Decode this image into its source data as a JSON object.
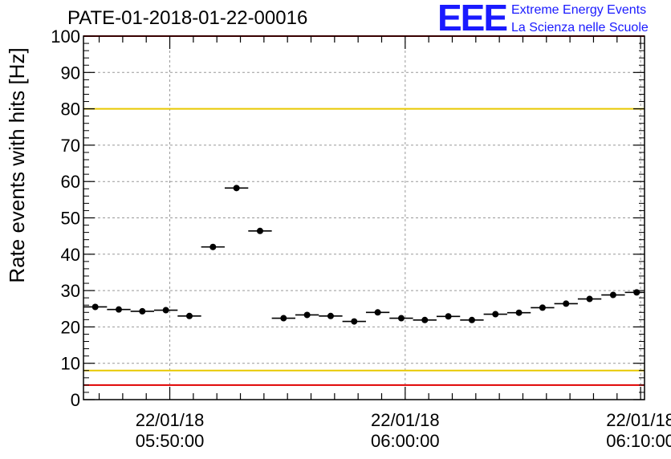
{
  "header": {
    "title": "PATE-01-2018-01-22-00016"
  },
  "logo": {
    "mark": "EEE",
    "line1": "Extreme Energy Events",
    "line2": "La Scienza nelle Scuole",
    "color": "#1a1aff"
  },
  "chart_data": {
    "type": "scatter",
    "title": "PATE-01-2018-01-22-00016",
    "ylabel": "Rate events with hits [Hz]",
    "xlabel": "",
    "ylim": [
      0,
      100
    ],
    "yticks": [
      0,
      10,
      20,
      30,
      40,
      50,
      60,
      70,
      80,
      90,
      100
    ],
    "xlim": [
      "2018-01-22 05:46:20",
      "2018-01-22 06:10:10"
    ],
    "xtick_labels": [
      {
        "time": "2018-01-22 05:50:00",
        "date_label": "22/01/18",
        "time_label": "05:50:00"
      },
      {
        "time": "2018-01-22 06:00:00",
        "date_label": "22/01/18",
        "time_label": "06:00:00"
      },
      {
        "time": "2018-01-22 06:10:00",
        "date_label": "22/01/18",
        "time_label": "06:10:00"
      }
    ],
    "grid": true,
    "bin_width_seconds": 60,
    "reference_lines": [
      {
        "y": 80,
        "color": "#e8c800"
      },
      {
        "y": 8,
        "color": "#e8c800"
      },
      {
        "y": 100,
        "color": "#e00000"
      },
      {
        "y": 4,
        "color": "#e00000"
      }
    ],
    "x": [
      "2018-01-22 05:46:50",
      "2018-01-22 05:47:50",
      "2018-01-22 05:48:50",
      "2018-01-22 05:49:50",
      "2018-01-22 05:50:50",
      "2018-01-22 05:51:50",
      "2018-01-22 05:52:50",
      "2018-01-22 05:53:50",
      "2018-01-22 05:54:50",
      "2018-01-22 05:55:50",
      "2018-01-22 05:56:50",
      "2018-01-22 05:57:50",
      "2018-01-22 05:58:50",
      "2018-01-22 05:59:50",
      "2018-01-22 06:00:50",
      "2018-01-22 06:01:50",
      "2018-01-22 06:02:50",
      "2018-01-22 06:03:50",
      "2018-01-22 06:04:50",
      "2018-01-22 06:05:50",
      "2018-01-22 06:06:50",
      "2018-01-22 06:07:50",
      "2018-01-22 06:08:50",
      "2018-01-22 06:09:50"
    ],
    "y": [
      25.5,
      24.8,
      24.3,
      24.6,
      23.0,
      42.0,
      58.2,
      46.4,
      22.4,
      23.3,
      23.0,
      21.5,
      24.0,
      22.4,
      21.9,
      22.9,
      21.9,
      23.5,
      23.9,
      25.3,
      26.4,
      27.7,
      28.8,
      29.5
    ],
    "marker_color": "#000000"
  }
}
